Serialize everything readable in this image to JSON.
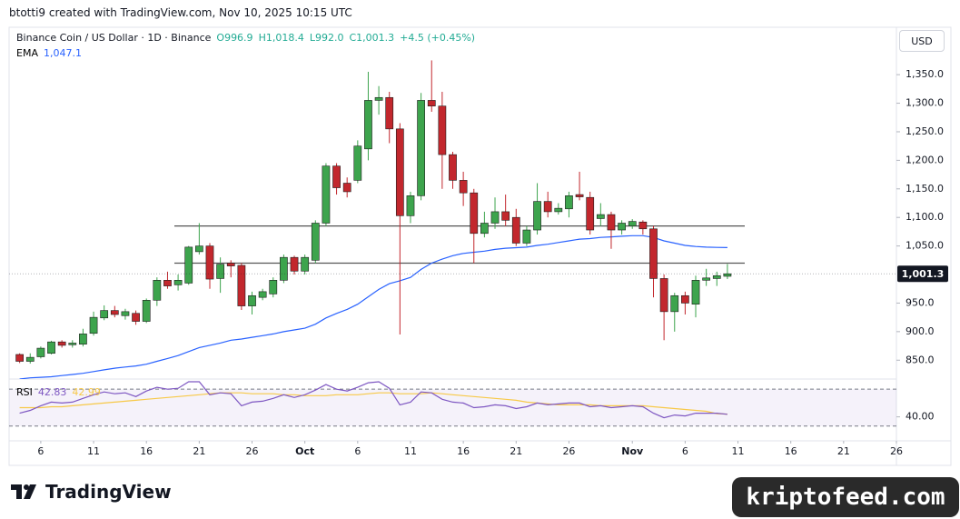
{
  "header": {
    "caption": "btotti9 created with TradingView.com, Nov 10, 2025 10:15 UTC"
  },
  "chart_data": {
    "type": "candlestick",
    "title": "Binance Coin / US Dollar · 1D · Binance",
    "ohlc_legend": [
      "O996.9",
      "H1,018.4",
      "L992.0",
      "C1,001.3",
      "+4.5 (+0.45%)"
    ],
    "currency": "USD",
    "x": [
      "2025-09-04",
      "2025-09-05",
      "2025-09-06",
      "2025-09-07",
      "2025-09-08",
      "2025-09-09",
      "2025-09-10",
      "2025-09-11",
      "2025-09-12",
      "2025-09-13",
      "2025-09-14",
      "2025-09-15",
      "2025-09-16",
      "2025-09-17",
      "2025-09-18",
      "2025-09-19",
      "2025-09-20",
      "2025-09-21",
      "2025-09-22",
      "2025-09-23",
      "2025-09-24",
      "2025-09-25",
      "2025-09-26",
      "2025-09-27",
      "2025-09-28",
      "2025-09-29",
      "2025-09-30",
      "2025-10-01",
      "2025-10-02",
      "2025-10-03",
      "2025-10-04",
      "2025-10-05",
      "2025-10-06",
      "2025-10-07",
      "2025-10-08",
      "2025-10-09",
      "2025-10-10",
      "2025-10-11",
      "2025-10-12",
      "2025-10-13",
      "2025-10-14",
      "2025-10-15",
      "2025-10-16",
      "2025-10-17",
      "2025-10-18",
      "2025-10-19",
      "2025-10-20",
      "2025-10-21",
      "2025-10-22",
      "2025-10-23",
      "2025-10-24",
      "2025-10-25",
      "2025-10-26",
      "2025-10-27",
      "2025-10-28",
      "2025-10-29",
      "2025-10-30",
      "2025-10-31",
      "2025-11-01",
      "2025-11-02",
      "2025-11-03",
      "2025-11-04",
      "2025-11-05",
      "2025-11-06",
      "2025-11-07",
      "2025-11-08",
      "2025-11-09",
      "2025-11-10"
    ],
    "open": [
      860,
      848,
      856,
      862,
      882,
      877,
      878,
      897,
      924,
      937,
      928,
      932,
      918,
      955,
      990,
      982,
      985,
      1040,
      1050,
      993,
      1020,
      1016,
      945,
      960,
      966,
      990,
      1030,
      1006,
      1025,
      1090,
      1190,
      1160,
      1165,
      1220,
      1305,
      1310,
      1255,
      1103,
      1138,
      1305,
      1295,
      1210,
      1165,
      1143,
      1072,
      1090,
      1110,
      1100,
      1055,
      1078,
      1128,
      1110,
      1115,
      1140,
      1135,
      1098,
      1105,
      1078,
      1085,
      1092,
      1080,
      993,
      935,
      963,
      948,
      990,
      993,
      996.9
    ],
    "high": [
      862,
      862,
      874,
      884,
      885,
      885,
      905,
      935,
      946,
      945,
      940,
      937,
      958,
      995,
      1005,
      1000,
      1050,
      1090,
      1055,
      1030,
      1025,
      1020,
      970,
      975,
      995,
      1035,
      1033,
      1035,
      1095,
      1195,
      1195,
      1170,
      1235,
      1355,
      1330,
      1320,
      1265,
      1145,
      1318,
      1375,
      1320,
      1215,
      1180,
      1150,
      1110,
      1135,
      1140,
      1115,
      1085,
      1160,
      1145,
      1125,
      1145,
      1180,
      1145,
      1125,
      1110,
      1095,
      1097,
      1095,
      1085,
      1000,
      968,
      970,
      998,
      1010,
      1005,
      1018.4
    ],
    "low": [
      845,
      844,
      853,
      860,
      872,
      872,
      874,
      893,
      920,
      925,
      921,
      912,
      915,
      945,
      975,
      972,
      982,
      1035,
      975,
      968,
      995,
      938,
      930,
      955,
      960,
      985,
      1000,
      1000,
      1020,
      1085,
      1140,
      1135,
      1160,
      1200,
      1280,
      1230,
      895,
      1090,
      1130,
      1285,
      1150,
      1150,
      1120,
      1020,
      1065,
      1080,
      1085,
      1050,
      1050,
      1070,
      1100,
      1105,
      1100,
      1130,
      1070,
      1085,
      1045,
      1070,
      1080,
      1070,
      960,
      885,
      900,
      930,
      925,
      980,
      980,
      992.0
    ],
    "close": [
      848,
      855,
      871,
      882,
      876,
      880,
      896,
      925,
      937,
      930,
      935,
      918,
      955,
      990,
      980,
      990,
      1048,
      1050,
      992,
      1018,
      1015,
      945,
      963,
      970,
      990,
      1030,
      1006,
      1030,
      1090,
      1190,
      1152,
      1145,
      1225,
      1305,
      1310,
      1255,
      1103,
      1138,
      1305,
      1295,
      1210,
      1165,
      1143,
      1072,
      1090,
      1110,
      1095,
      1055,
      1078,
      1128,
      1110,
      1116,
      1138,
      1136,
      1078,
      1105,
      1078,
      1090,
      1093,
      1080,
      993,
      935,
      963,
      950,
      990,
      994,
      998,
      1001.3
    ],
    "up_color": "#3da44d",
    "down_color": "#c2272d",
    "price_label": "1,001.3",
    "xlim": [
      "2025-09-03",
      "2025-11-26"
    ],
    "xticks": [
      {
        "value": "2025-09-06",
        "label": "6"
      },
      {
        "value": "2025-09-11",
        "label": "11"
      },
      {
        "value": "2025-09-16",
        "label": "16"
      },
      {
        "value": "2025-09-21",
        "label": "21"
      },
      {
        "value": "2025-09-26",
        "label": "26"
      },
      {
        "value": "2025-10-01",
        "label": "Oct"
      },
      {
        "value": "2025-10-06",
        "label": "6"
      },
      {
        "value": "2025-10-11",
        "label": "11"
      },
      {
        "value": "2025-10-16",
        "label": "16"
      },
      {
        "value": "2025-10-21",
        "label": "21"
      },
      {
        "value": "2025-10-26",
        "label": "26"
      },
      {
        "value": "2025-11-01",
        "label": "Nov"
      },
      {
        "value": "2025-11-06",
        "label": "6"
      },
      {
        "value": "2025-11-11",
        "label": "11"
      },
      {
        "value": "2025-11-16",
        "label": "16"
      },
      {
        "value": "2025-11-21",
        "label": "21"
      },
      {
        "value": "2025-11-26",
        "label": "26"
      }
    ],
    "ylim": [
      817,
      1433
    ],
    "yticks": [
      {
        "value": 850,
        "label": "850.0"
      },
      {
        "value": 900,
        "label": "900.0"
      },
      {
        "value": 950,
        "label": "950.0"
      },
      {
        "value": 1050,
        "label": "1,050.0"
      },
      {
        "value": 1100,
        "label": "1,100.0"
      },
      {
        "value": 1150,
        "label": "1,150.0"
      },
      {
        "value": 1200,
        "label": "1,200.0"
      },
      {
        "value": 1250,
        "label": "1,250.0"
      },
      {
        "value": 1300,
        "label": "1,300.0"
      },
      {
        "value": 1350,
        "label": "1,350.0"
      }
    ],
    "levels": [
      1085,
      1020
    ],
    "level_color": "#555555",
    "ema": {
      "name": "EMA",
      "color": "#2962ff",
      "value_label": "1,047.1",
      "values": [
        817,
        819,
        820,
        821,
        823,
        825,
        827,
        830,
        833,
        836,
        838,
        840,
        843,
        848,
        853,
        858,
        865,
        872,
        876,
        880,
        885,
        887,
        890,
        893,
        896,
        900,
        903,
        906,
        913,
        924,
        932,
        939,
        948,
        961,
        974,
        984,
        989,
        995,
        1009,
        1020,
        1027,
        1033,
        1037,
        1039,
        1041,
        1044,
        1046,
        1047,
        1048,
        1051,
        1053,
        1056,
        1059,
        1062,
        1063,
        1065,
        1066,
        1067,
        1068,
        1068,
        1065,
        1059,
        1055,
        1051,
        1049,
        1048,
        1047.5,
        1047.1
      ]
    },
    "rsi": {
      "name": "RSI",
      "ylim": [
        16,
        81
      ],
      "yticks": [
        {
          "value": 40,
          "label": "40.00"
        }
      ],
      "bands": [
        30,
        70
      ],
      "band_color": "#7e57c2",
      "series": [
        {
          "color": "#7e57c2",
          "value_label": "42.83",
          "values": [
            44,
            47,
            52,
            56,
            55,
            56,
            60,
            64,
            67,
            65,
            66,
            62,
            68,
            72,
            70,
            71,
            78,
            78,
            64,
            66,
            65,
            52,
            56,
            57,
            60,
            64,
            61,
            64,
            69,
            75,
            70,
            68,
            72,
            77,
            78,
            71,
            53,
            56,
            67,
            66,
            59,
            56,
            55,
            50,
            51,
            53,
            52,
            49,
            51,
            55,
            53,
            54,
            55,
            55,
            51,
            52,
            50,
            51,
            52,
            51,
            44,
            39,
            42,
            41,
            44,
            44,
            44,
            42.83
          ]
        },
        {
          "color": "#f7c948",
          "value_label": "42.99",
          "values": [
            50,
            50,
            50,
            51,
            51,
            52,
            53,
            54,
            55,
            56,
            57,
            58,
            59,
            60,
            61,
            62,
            63,
            64,
            65,
            66,
            66,
            66,
            65,
            65,
            65,
            64,
            64,
            63,
            63,
            63,
            64,
            64,
            64,
            65,
            66,
            66,
            65,
            65,
            65,
            66,
            65,
            64,
            63,
            62,
            61,
            60,
            59,
            58,
            56,
            55,
            54,
            53,
            53,
            53,
            53,
            52,
            52,
            52,
            52,
            52,
            51,
            50,
            49,
            48,
            47,
            46,
            43.5,
            42.99
          ]
        }
      ]
    }
  },
  "footer": {
    "brand": "TradingView",
    "watermark": "kriptofeed.com"
  }
}
